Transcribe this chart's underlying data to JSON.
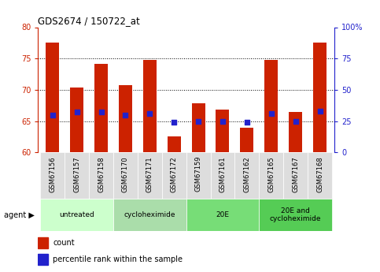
{
  "title": "GDS2674 / 150722_at",
  "samples": [
    "GSM67156",
    "GSM67157",
    "GSM67158",
    "GSM67170",
    "GSM67171",
    "GSM67172",
    "GSM67159",
    "GSM67161",
    "GSM67162",
    "GSM67165",
    "GSM67167",
    "GSM67168"
  ],
  "counts": [
    77.5,
    70.4,
    74.1,
    70.7,
    74.8,
    62.5,
    67.8,
    66.8,
    63.9,
    74.8,
    66.4,
    77.6
  ],
  "percentiles": [
    30,
    32,
    32,
    30,
    31,
    24,
    25,
    25,
    24,
    31,
    25,
    33
  ],
  "ylim_left": [
    60,
    80
  ],
  "ylim_right": [
    0,
    100
  ],
  "yticks_left": [
    60,
    65,
    70,
    75,
    80
  ],
  "yticks_right": [
    0,
    25,
    50,
    75,
    100
  ],
  "bar_color": "#CC2200",
  "dot_color": "#2222CC",
  "bar_bottom": 60,
  "groups": [
    {
      "label": "untreated",
      "start": 0,
      "end": 3,
      "color": "#CCFFCC"
    },
    {
      "label": "cycloheximide",
      "start": 3,
      "end": 6,
      "color": "#AADDAA"
    },
    {
      "label": "20E",
      "start": 6,
      "end": 9,
      "color": "#77DD77"
    },
    {
      "label": "20E and\ncycloheximide",
      "start": 9,
      "end": 12,
      "color": "#55CC55"
    }
  ],
  "tick_bg_color": "#DDDDDD",
  "left_axis_color": "#CC2200",
  "right_axis_color": "#2222CC"
}
